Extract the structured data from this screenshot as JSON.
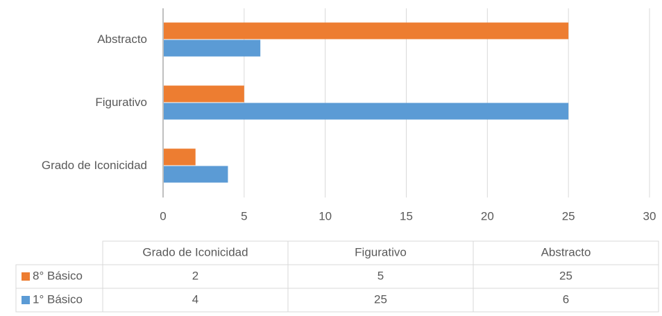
{
  "chart_data": {
    "type": "bar",
    "orientation": "horizontal",
    "categories": [
      "Grado de Iconicidad",
      "Figurativo",
      "Abstracto"
    ],
    "series": [
      {
        "name": "8° Básico",
        "color": "#ed7d31",
        "values": [
          2,
          5,
          25
        ]
      },
      {
        "name": "1° Básico",
        "color": "#5b9bd5",
        "values": [
          4,
          25,
          6
        ]
      }
    ],
    "xlim": [
      0,
      30
    ],
    "xticks": [
      0,
      5,
      10,
      15,
      20,
      25,
      30
    ],
    "grid": true,
    "data_table": true
  }
}
